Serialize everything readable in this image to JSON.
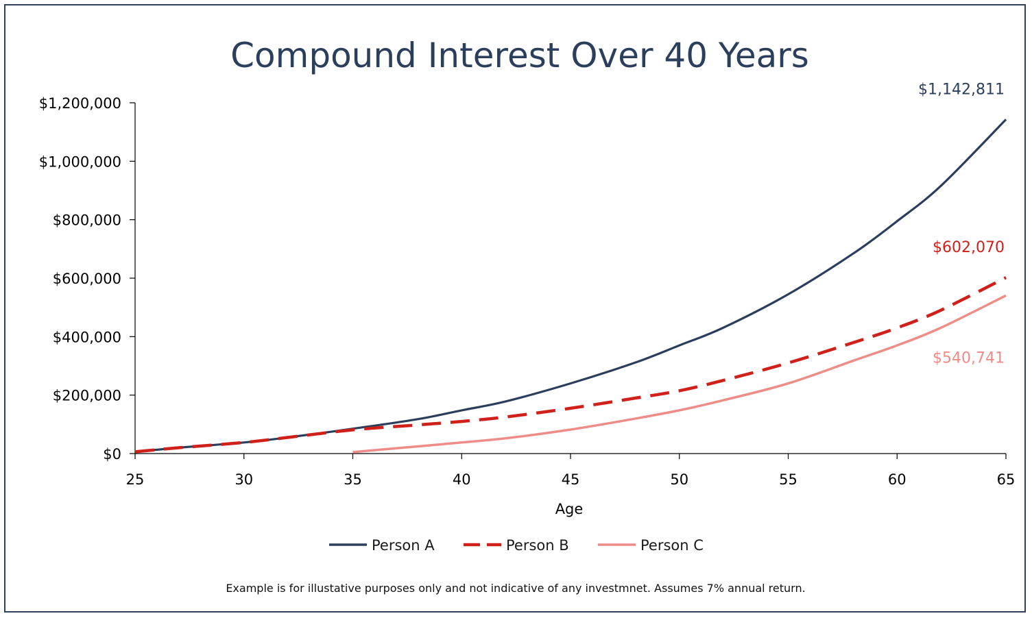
{
  "chart_data": {
    "type": "line",
    "title": "Compound Interest Over 40 Years",
    "xlabel": "Age",
    "ylabel": "",
    "xlim": [
      25,
      65
    ],
    "ylim": [
      0,
      1200000
    ],
    "x_ticks": [
      25,
      30,
      35,
      40,
      45,
      50,
      55,
      60,
      65
    ],
    "y_ticks": [
      0,
      200000,
      400000,
      600000,
      800000,
      1000000,
      1200000
    ],
    "y_tick_labels": [
      "$0",
      "$200,000",
      "$400,000",
      "$600,000",
      "$800,000",
      "$1,000,000",
      "$1,200,000"
    ],
    "grid": false,
    "legend_position": "bottom",
    "series": [
      {
        "name": "Person A",
        "color": "#2b3f5c",
        "style": "solid",
        "x": [
          25,
          27,
          30,
          32,
          35,
          38,
          40,
          42,
          45,
          48,
          50,
          52,
          55,
          58,
          60,
          62,
          65
        ],
        "values": [
          6000,
          20000,
          38000,
          55000,
          85000,
          118000,
          148000,
          178000,
          240000,
          312000,
          370000,
          430000,
          545000,
          685000,
          795000,
          915000,
          1142811
        ],
        "end_label": "$1,142,811"
      },
      {
        "name": "Person B",
        "color": "#d0201a",
        "style": "dashed",
        "x": [
          25,
          27,
          30,
          32,
          35,
          38,
          40,
          42,
          45,
          48,
          50,
          52,
          55,
          58,
          60,
          62,
          65
        ],
        "values": [
          6000,
          20000,
          38000,
          55000,
          81000,
          98000,
          110000,
          125000,
          155000,
          190000,
          215000,
          250000,
          310000,
          380000,
          430000,
          490000,
          602070
        ],
        "end_label": "$602,070"
      },
      {
        "name": "Person C",
        "color": "#ee8c88",
        "style": "solid",
        "x": [
          35,
          37,
          40,
          42,
          45,
          48,
          50,
          52,
          55,
          58,
          60,
          62,
          65
        ],
        "values": [
          5000,
          18000,
          38000,
          52000,
          82000,
          120000,
          148000,
          182000,
          240000,
          318000,
          370000,
          430000,
          540741
        ],
        "end_label": "$540,741"
      }
    ],
    "footnote": "Example is for illustative purposes only and not indicative of any investmnet. Assumes 7% annual return."
  }
}
